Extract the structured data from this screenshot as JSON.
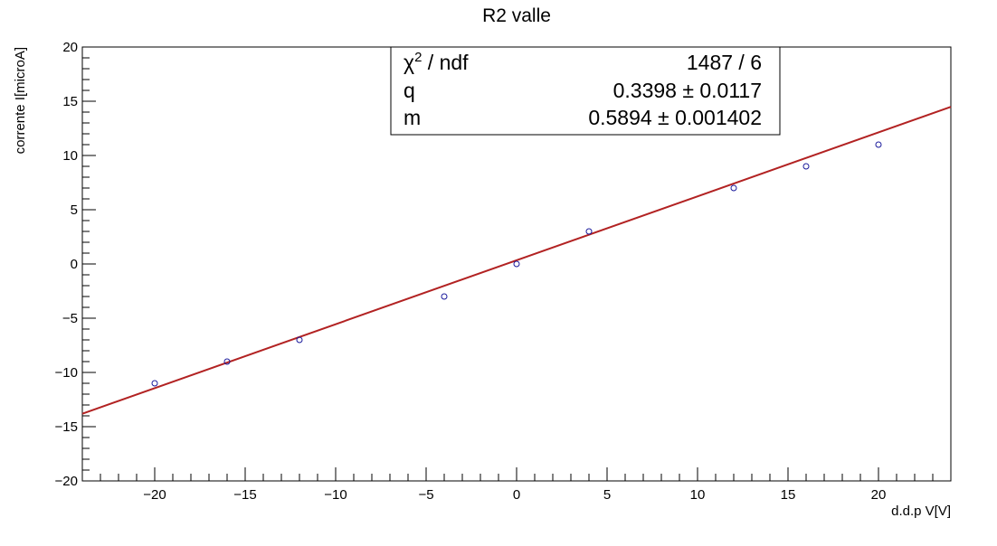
{
  "chart_data": {
    "type": "scatter",
    "title": "R2 valle",
    "xlabel": "d.d.p V[V]",
    "ylabel": "corrente I[microA]",
    "xlim": [
      -24,
      24
    ],
    "ylim": [
      -20,
      20
    ],
    "x_ticks": [
      -20,
      -15,
      -10,
      -5,
      0,
      5,
      10,
      15,
      20
    ],
    "y_ticks": [
      -20,
      -15,
      -10,
      -5,
      0,
      5,
      10,
      15,
      20
    ],
    "x_tick_labels": [
      "−20",
      "−15",
      "−10",
      "−5",
      "0",
      "5",
      "10",
      "15",
      "20"
    ],
    "y_tick_labels": [
      "−20",
      "−15",
      "−10",
      "−5",
      "0",
      "5",
      "10",
      "15",
      "20"
    ],
    "points": [
      {
        "x": -20,
        "y": -11
      },
      {
        "x": -16,
        "y": -9
      },
      {
        "x": -12,
        "y": -7
      },
      {
        "x": -4,
        "y": -3
      },
      {
        "x": 0,
        "y": 0
      },
      {
        "x": 4,
        "y": 3
      },
      {
        "x": 12,
        "y": 7
      },
      {
        "x": 16,
        "y": 9
      },
      {
        "x": 20,
        "y": 11
      }
    ],
    "fit": {
      "intercept": 0.3398,
      "slope": 0.5894,
      "x_range": [
        -24,
        24
      ]
    },
    "stats_box": {
      "rows": [
        {
          "label_main": "χ",
          "label_sup": "2",
          "label_rest": " / ndf",
          "value": "1487 / 6"
        },
        {
          "label_main": "q",
          "label_sup": "",
          "label_rest": "",
          "value": "0.3398 ± 0.0117"
        },
        {
          "label_main": "m",
          "label_sup": "",
          "label_rest": "",
          "value": "0.5894 ± 0.001402"
        }
      ]
    },
    "colors": {
      "marker": "#1a1a9c",
      "fit_line": "#b22222",
      "frame": "#000000"
    }
  }
}
